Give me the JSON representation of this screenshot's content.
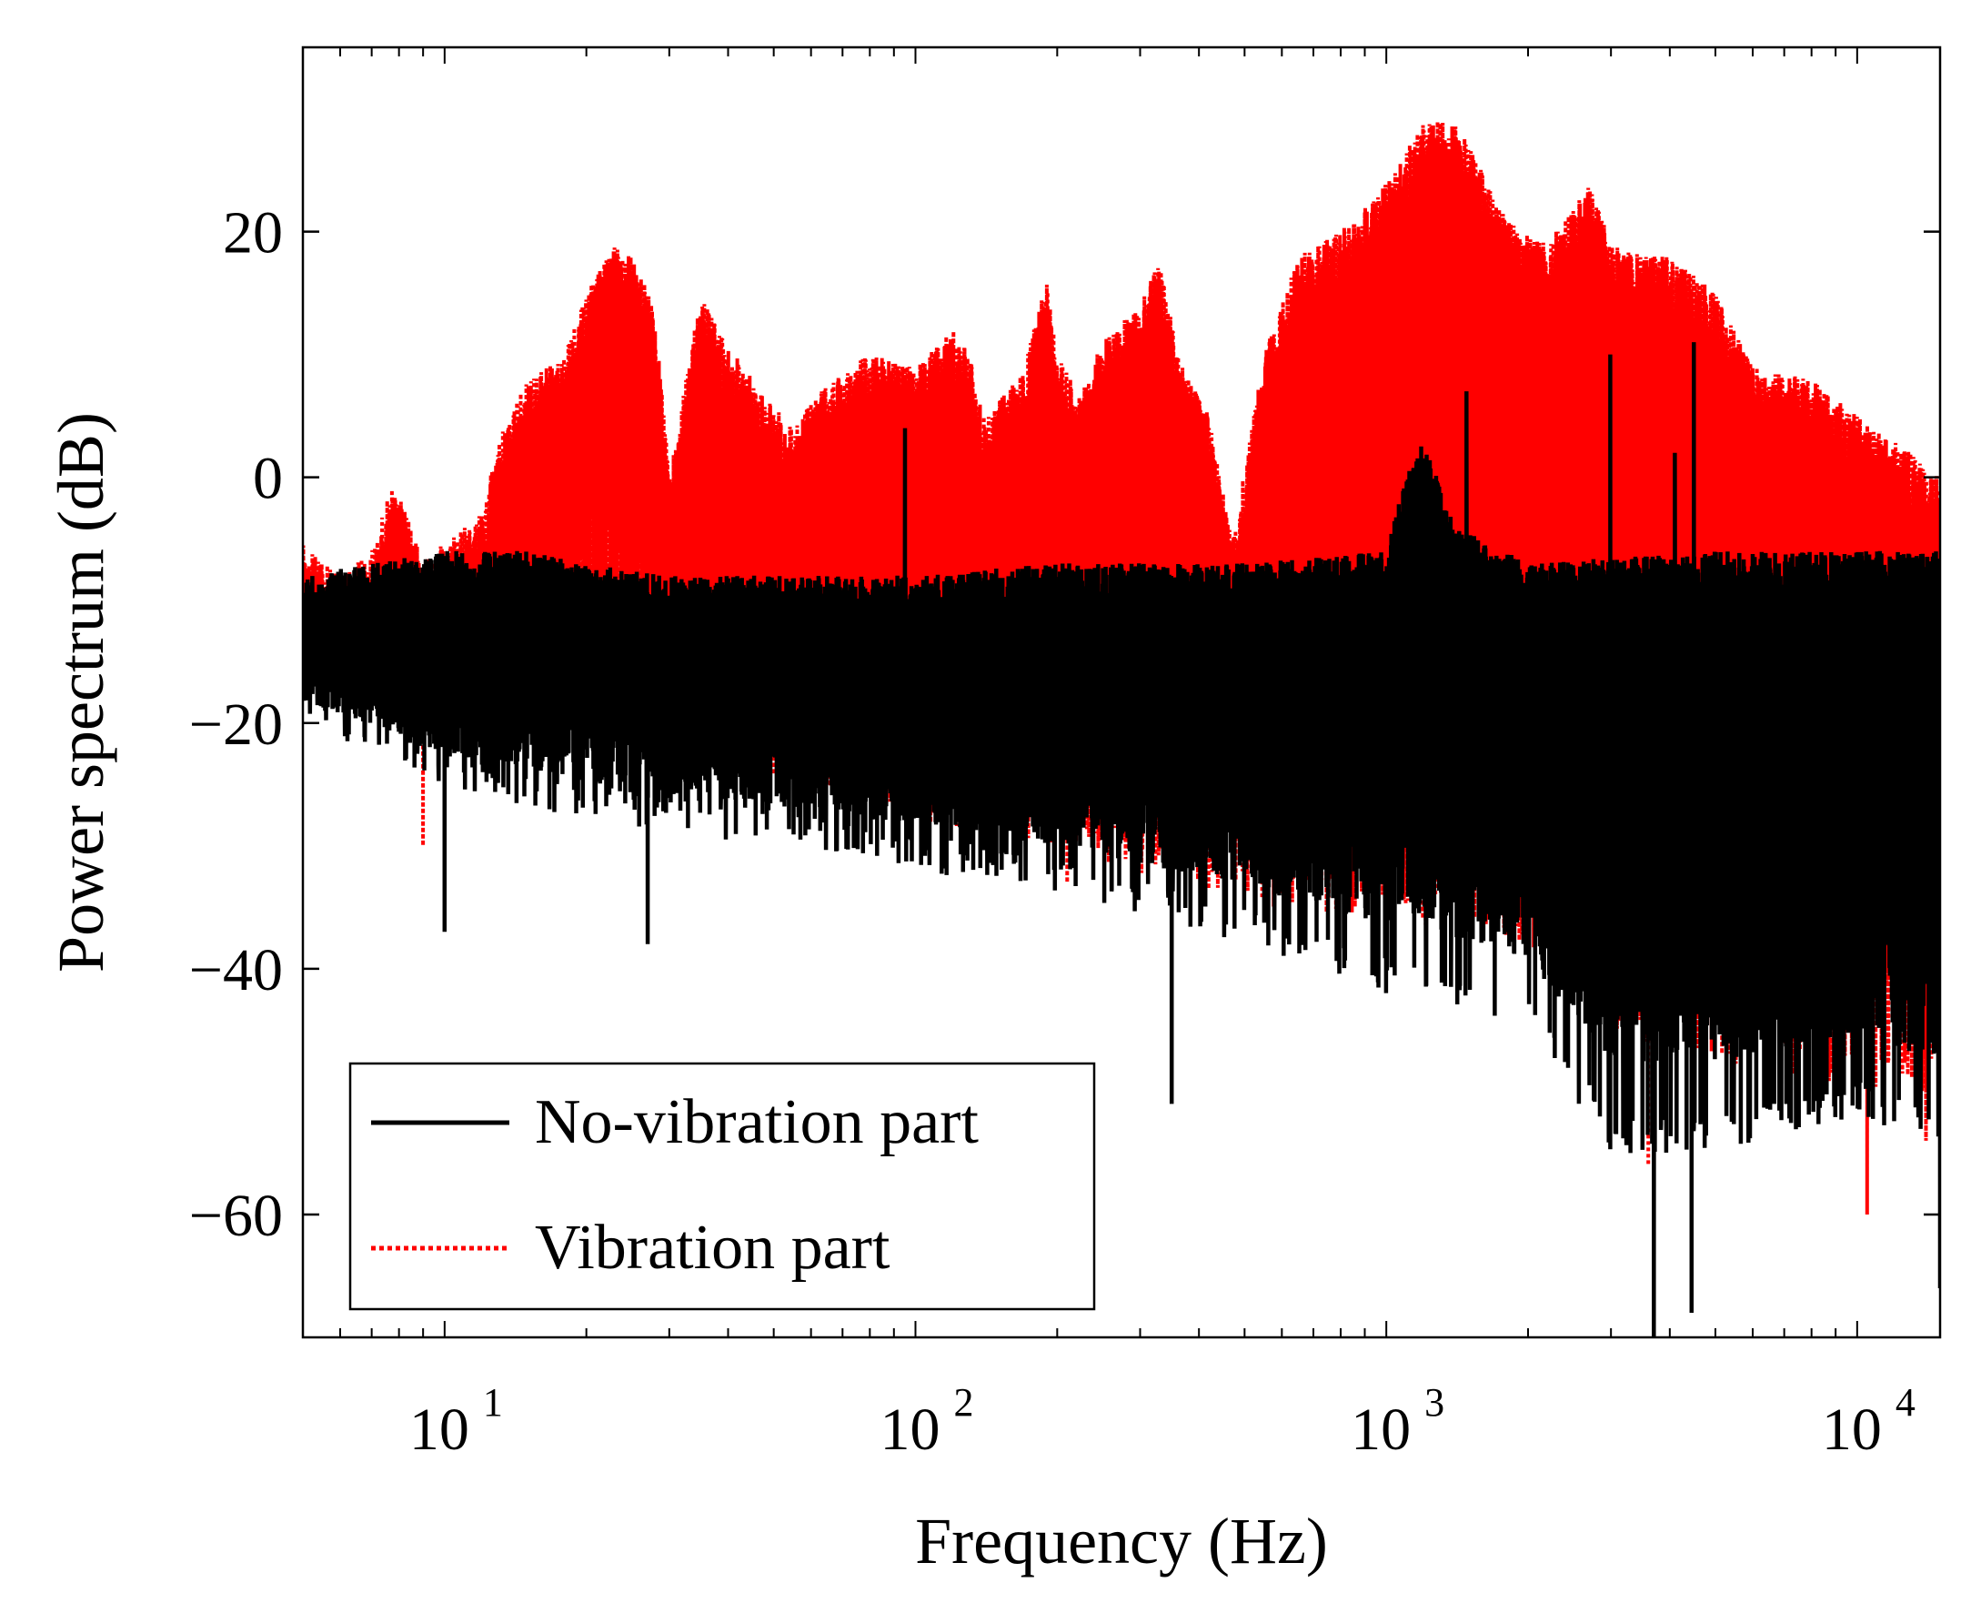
{
  "chart_data": {
    "type": "line",
    "title": "",
    "xlabel": "Frequency (Hz)",
    "ylabel": "Power spectrum (dB)",
    "xscale": "log",
    "xlim": [
      5,
      15000
    ],
    "ylim": [
      -70,
      35
    ],
    "xticks": [
      {
        "value": 10,
        "base": "10",
        "exp": "1"
      },
      {
        "value": 100,
        "base": "10",
        "exp": "2"
      },
      {
        "value": 1000,
        "base": "10",
        "exp": "3"
      },
      {
        "value": 10000,
        "base": "10",
        "exp": "4"
      }
    ],
    "yticks": [
      {
        "value": 20,
        "label": "20"
      },
      {
        "value": 0,
        "label": "0"
      },
      {
        "value": -20,
        "label": "−20"
      },
      {
        "value": -40,
        "label": "−40"
      },
      {
        "value": -60,
        "label": "−60"
      }
    ],
    "legend": {
      "location": "bottom-left",
      "entries": [
        {
          "label": "No-vibration part",
          "color": "#000000",
          "style": "solid"
        },
        {
          "label": "Vibration part",
          "color": "#ff0000",
          "style": "dotted"
        }
      ]
    },
    "series": [
      {
        "name": "Vibration part",
        "color": "#ff0000",
        "style": "dotted",
        "upper_envelope": {
          "freq": [
            5,
            6,
            7,
            7.8,
            9,
            10,
            12,
            13,
            15,
            18,
            20,
            23,
            25,
            28,
            30,
            35,
            38,
            45,
            55,
            65,
            80,
            100,
            120,
            130,
            140,
            170,
            190,
            200,
            220,
            260,
            300,
            330,
            360,
            420,
            470,
            550,
            650,
            800,
            1000,
            1200,
            1400,
            1500,
            1800,
            2200,
            2700,
            3000,
            3500,
            4000,
            5000,
            6000,
            8000,
            10000,
            12000,
            15000
          ],
          "db": [
            -5,
            -8,
            -6,
            0,
            -7,
            -5,
            -3,
            3,
            8,
            10,
            15,
            19,
            18,
            14,
            0,
            15,
            12,
            8,
            4,
            8,
            10,
            9,
            12,
            10,
            5,
            9,
            16,
            10,
            7,
            12,
            14,
            18,
            10,
            5,
            -5,
            10,
            18,
            20,
            24,
            29,
            29,
            27,
            21,
            19,
            24,
            19,
            18,
            18,
            15,
            9,
            8,
            5,
            3,
            0
          ]
        },
        "lower_envelope": {
          "freq": [
            5,
            8,
            10,
            15,
            20,
            30,
            50,
            100,
            200,
            500,
            1000,
            2000,
            3000,
            5000,
            10000,
            15000
          ],
          "db": [
            -14,
            -18,
            -20,
            -20,
            -18,
            -20,
            -25,
            -28,
            -30,
            -35,
            -36,
            -38,
            -45,
            -48,
            -50,
            -50
          ]
        },
        "notable_dips": [
          {
            "freq": 9,
            "db": -30
          },
          {
            "freq": 210,
            "db": -33
          },
          {
            "freq": 3600,
            "db": -56
          },
          {
            "freq": 10500,
            "db": -60
          },
          {
            "freq": 14000,
            "db": -54
          }
        ]
      },
      {
        "name": "No-vibration part",
        "color": "#000000",
        "style": "solid",
        "upper_envelope": {
          "freq": [
            5,
            7,
            10,
            15,
            20,
            30,
            50,
            100,
            200,
            500,
            1000,
            1100,
            1200,
            1400,
            2000,
            5000,
            10000,
            15000
          ],
          "db": [
            -8,
            -7,
            -6,
            -6,
            -7,
            -8,
            -8,
            -8,
            -7,
            -7,
            -6,
            0,
            3,
            -4,
            -7,
            -6,
            -6,
            -6
          ]
        },
        "lower_envelope": {
          "freq": [
            5,
            10,
            20,
            50,
            100,
            200,
            500,
            1000,
            2000,
            3000,
            5000,
            10000,
            15000
          ],
          "db": [
            -20,
            -25,
            -28,
            -30,
            -32,
            -34,
            -38,
            -42,
            -45,
            -55,
            -55,
            -52,
            -55
          ]
        },
        "peaks": [
          {
            "freq": 95,
            "db": 4
          },
          {
            "freq": 1480,
            "db": 7
          },
          {
            "freq": 2990,
            "db": 10
          },
          {
            "freq": 4500,
            "db": 11
          },
          {
            "freq": 4100,
            "db": 2
          }
        ],
        "notable_dips": [
          {
            "freq": 10,
            "db": -37
          },
          {
            "freq": 27,
            "db": -38
          },
          {
            "freq": 350,
            "db": -51
          },
          {
            "freq": 3700,
            "db": -70
          },
          {
            "freq": 4450,
            "db": -68
          },
          {
            "freq": 15000,
            "db": -66
          }
        ]
      }
    ]
  }
}
